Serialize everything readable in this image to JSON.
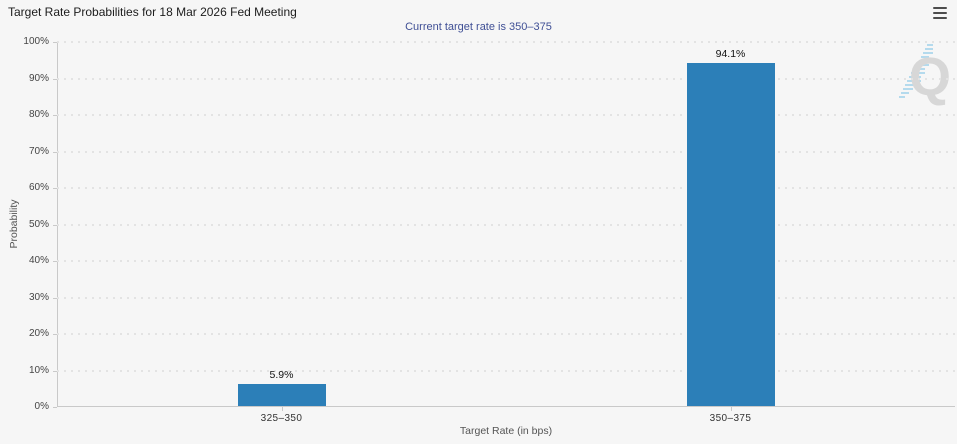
{
  "header": {
    "title": "Target Rate Probabilities for 18 Mar 2026 Fed Meeting",
    "subtitle": "Current target rate is 350–375"
  },
  "watermark": {
    "letter": "Q"
  },
  "colors": {
    "background": "#f6f6f6",
    "bar": "#2c7fb8",
    "subtitle_text": "#3f4f95",
    "axis_line": "#c9c9c9",
    "gridline": "#e3e3e3",
    "watermark_gray": "#d7d7d7",
    "watermark_blue": "#a9d6ec"
  },
  "chart_data": {
    "type": "bar",
    "title": "Target Rate Probabilities for 18 Mar 2026 Fed Meeting",
    "subtitle": "Current target rate is 350–375",
    "categories": [
      "325–350",
      "350–375"
    ],
    "values": [
      5.9,
      94.1
    ],
    "value_labels": [
      "5.9%",
      "94.1%"
    ],
    "xlabel": "Target Rate (in bps)",
    "ylabel": "Probability",
    "ylim": [
      0,
      100
    ],
    "ytick_step": 10,
    "yticks": [
      "0%",
      "10%",
      "20%",
      "30%",
      "40%",
      "50%",
      "60%",
      "70%",
      "80%",
      "90%",
      "100%"
    ],
    "grid": "dotted-horizontal",
    "legend": "none",
    "bar_color": "#2c7fb8"
  }
}
